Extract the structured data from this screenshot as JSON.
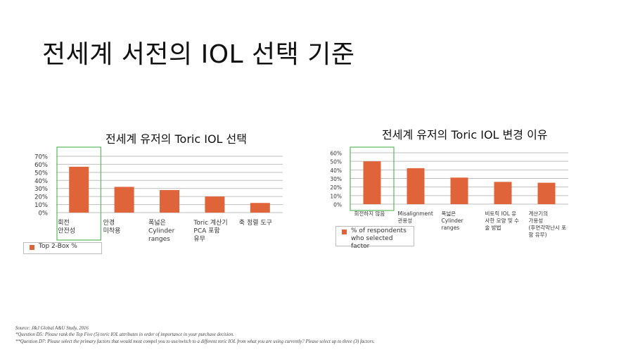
{
  "slide_title": "전세계 서전의 IOL 선택 기준",
  "colors": {
    "bar": "#e0643a",
    "highlight": "#5cb85c",
    "grid": "#bfbfbf"
  },
  "chart_data": [
    {
      "type": "bar",
      "title": "전세계 유저의 Toric IOL 선택",
      "categories": [
        "회전\n안전성",
        "안경\n미착용",
        "폭넓은\nCylinder\nranges",
        "Toric 계산기\nPCA 포함\n유무",
        "축 정렬 도구"
      ],
      "values": [
        57,
        32,
        28,
        20,
        12
      ],
      "unit": "%",
      "ylim": [
        0,
        70
      ],
      "yticks": [
        "0%",
        "10%",
        "20%",
        "30%",
        "40%",
        "50%",
        "60%",
        "70%"
      ],
      "legend": "Top 2-Box %",
      "highlight_index": 0,
      "grid": true
    },
    {
      "type": "bar",
      "title": "전세계 유저의 Toric IOL 변경 이유",
      "categories": [
        "회전하지 않음",
        "Misalignment\n관용성",
        "폭넓은\nCylinder\nranges",
        "비토릭 IOL 유\n사한 모양 및 수\n술 방법",
        "계산기의\n가용성\n(후면각막난시 포\n함 유무)"
      ],
      "values": [
        50,
        42,
        31,
        26,
        25
      ],
      "unit": "%",
      "ylim": [
        0,
        60
      ],
      "yticks": [
        "0%",
        "10%",
        "20%",
        "30%",
        "40%",
        "50%",
        "60%"
      ],
      "legend": "% of respondents who selected factor",
      "highlight_index": 0,
      "grid": true
    }
  ],
  "footer": {
    "source": "Source: J&J Global A&U Study, 2016",
    "note1": "*Question D5: Please rank the Top Five (5) toric IOL attributes in order of importance in your purchase decision.",
    "note2": "**Question D7: Please select the primary factors that would most compel you to use/switch to a different toric IOL from what you are using currently?  Please select up to three (3) factors."
  }
}
